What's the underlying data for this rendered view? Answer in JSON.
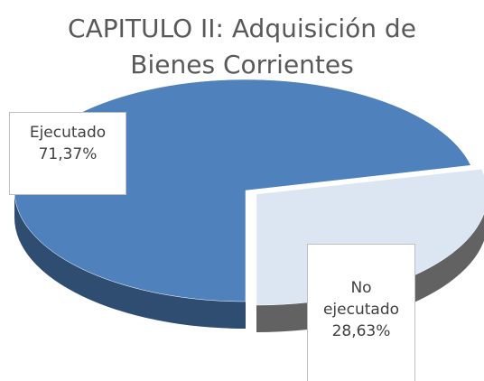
{
  "chart_data": {
    "type": "pie",
    "title": "CAPITULO II: Adquisición de Bienes Corrientes",
    "categories": [
      "Ejecutado",
      "No ejecutado"
    ],
    "values": [
      71.37,
      28.63
    ],
    "value_labels": [
      "71,37%",
      "28,63%"
    ],
    "colors": [
      "#4f81bd",
      "#dce6f2"
    ]
  }
}
